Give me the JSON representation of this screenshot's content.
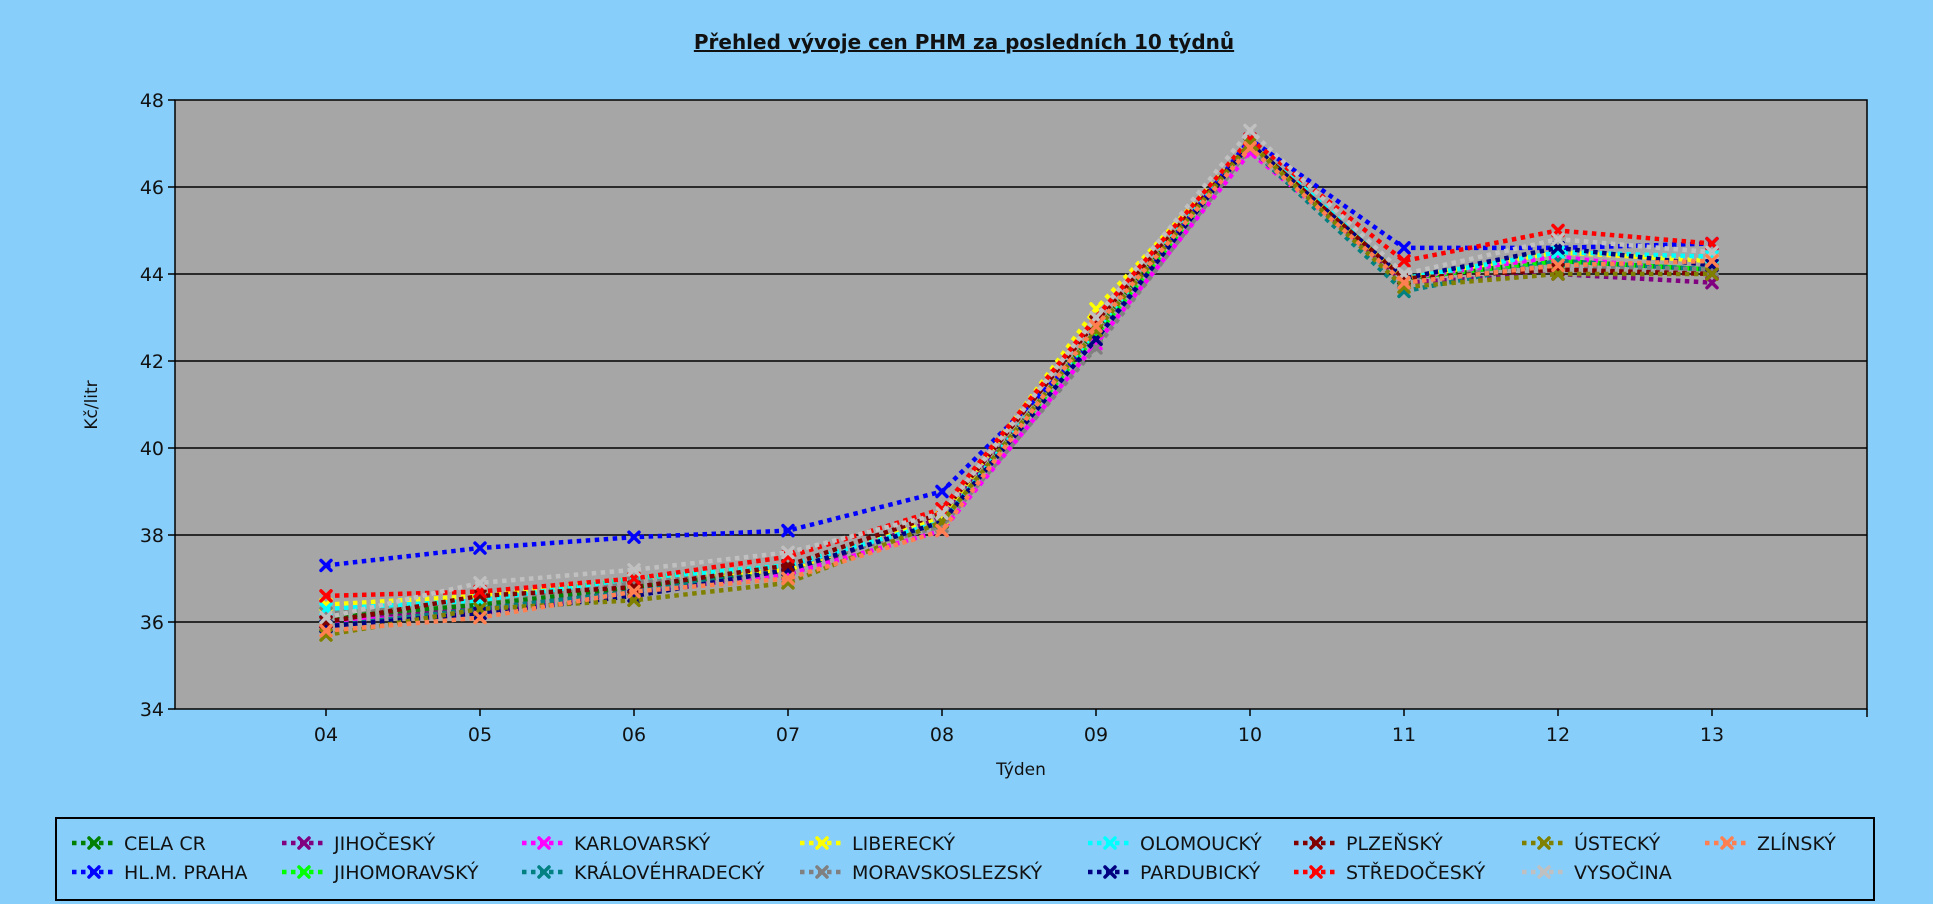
{
  "chart_data": {
    "type": "line",
    "title": "Přehled vývoje cen PHM za posledních 10 týdnů",
    "xlabel": "Týden",
    "ylabel": "Kč/litr",
    "categories": [
      "04",
      "05",
      "06",
      "07",
      "08",
      "09",
      "10",
      "11",
      "12",
      "13"
    ],
    "ylim": [
      34,
      48
    ],
    "yticks": [
      34,
      36,
      38,
      40,
      42,
      44,
      46,
      48
    ],
    "grid": true,
    "legend_position": "bottom",
    "plot_background": "#a6a6a6",
    "page_background": "#87cefa",
    "series": [
      {
        "name": "CELA CR",
        "color": "#008000",
        "values": [
          36.1,
          36.4,
          36.8,
          37.2,
          38.3,
          42.7,
          47.0,
          43.9,
          44.3,
          44.1
        ]
      },
      {
        "name": "HL.M. PRAHA",
        "color": "#0000ff",
        "values": [
          37.3,
          37.7,
          37.95,
          38.1,
          39.0,
          42.5,
          47.1,
          44.6,
          44.6,
          44.7
        ]
      },
      {
        "name": "JIHOČESKÝ",
        "color": "#800080",
        "values": [
          36.0,
          36.3,
          36.7,
          37.1,
          38.4,
          42.6,
          47.0,
          43.8,
          44.0,
          43.8
        ]
      },
      {
        "name": "JIHOMORAVSKÝ",
        "color": "#00ff00",
        "values": [
          36.2,
          36.5,
          37.0,
          37.3,
          38.3,
          42.6,
          46.9,
          43.9,
          44.3,
          44.1
        ]
      },
      {
        "name": "KARLOVARSKÝ",
        "color": "#ff00ff",
        "values": [
          36.0,
          36.2,
          36.7,
          37.1,
          38.1,
          42.4,
          46.8,
          43.9,
          44.4,
          44.0
        ]
      },
      {
        "name": "KRÁLOVÉHRADECKÝ",
        "color": "#008080",
        "values": [
          35.9,
          36.3,
          36.7,
          37.2,
          38.3,
          42.5,
          46.9,
          43.6,
          44.3,
          44.1
        ]
      },
      {
        "name": "LIBERECKÝ",
        "color": "#ffff00",
        "values": [
          36.4,
          36.6,
          37.0,
          37.2,
          38.4,
          43.2,
          47.0,
          43.9,
          44.5,
          44.3
        ]
      },
      {
        "name": "MORAVSKOSLEZSKÝ",
        "color": "#808080",
        "values": [
          36.2,
          36.5,
          36.9,
          37.3,
          38.2,
          42.3,
          46.9,
          43.9,
          44.2,
          44.1
        ]
      },
      {
        "name": "OLOMOUCKÝ",
        "color": "#00ffff",
        "values": [
          36.3,
          36.5,
          37.0,
          37.3,
          38.3,
          42.7,
          47.1,
          43.9,
          44.5,
          44.4
        ]
      },
      {
        "name": "PARDUBICKÝ",
        "color": "#000080",
        "values": [
          35.9,
          36.2,
          36.6,
          37.2,
          38.3,
          42.5,
          47.0,
          43.9,
          44.6,
          44.2
        ]
      },
      {
        "name": "PLZEŇSKÝ",
        "color": "#800000",
        "values": [
          36.0,
          36.6,
          36.8,
          37.3,
          38.5,
          42.9,
          47.0,
          43.9,
          44.1,
          44.0
        ]
      },
      {
        "name": "STŘEDOČESKÝ",
        "color": "#ff0000",
        "values": [
          36.6,
          36.7,
          37.0,
          37.5,
          38.6,
          43.0,
          47.1,
          44.3,
          45.0,
          44.7
        ]
      },
      {
        "name": "ÚSTECKÝ",
        "color": "#808000",
        "values": [
          35.7,
          36.3,
          36.5,
          36.9,
          38.3,
          42.7,
          47.0,
          43.7,
          44.0,
          44.0
        ]
      },
      {
        "name": "VYSOČINA",
        "color": "#c0c0c0",
        "values": [
          36.1,
          36.9,
          37.2,
          37.6,
          38.5,
          43.0,
          47.3,
          44.0,
          44.8,
          44.5
        ]
      },
      {
        "name": "ZLÍNSKÝ",
        "color": "#ff7f50",
        "values": [
          35.8,
          36.1,
          36.7,
          37.0,
          38.1,
          42.8,
          46.9,
          43.8,
          44.2,
          44.3
        ]
      }
    ],
    "legend_rows": [
      [
        "CELA CR",
        "JIHOČESKÝ",
        "KARLOVARSKÝ",
        "LIBERECKÝ",
        "OLOMOUCKÝ",
        "PLZEŇSKÝ",
        "ÚSTECKÝ",
        "ZLÍNSKÝ"
      ],
      [
        "HL.M. PRAHA",
        "JIHOMORAVSKÝ",
        "KRÁLOVÉHRADECKÝ",
        "MORAVSKOSLEZSKÝ",
        "PARDUBICKÝ",
        "STŘEDOČESKÝ",
        "VYSOČINA"
      ]
    ]
  }
}
